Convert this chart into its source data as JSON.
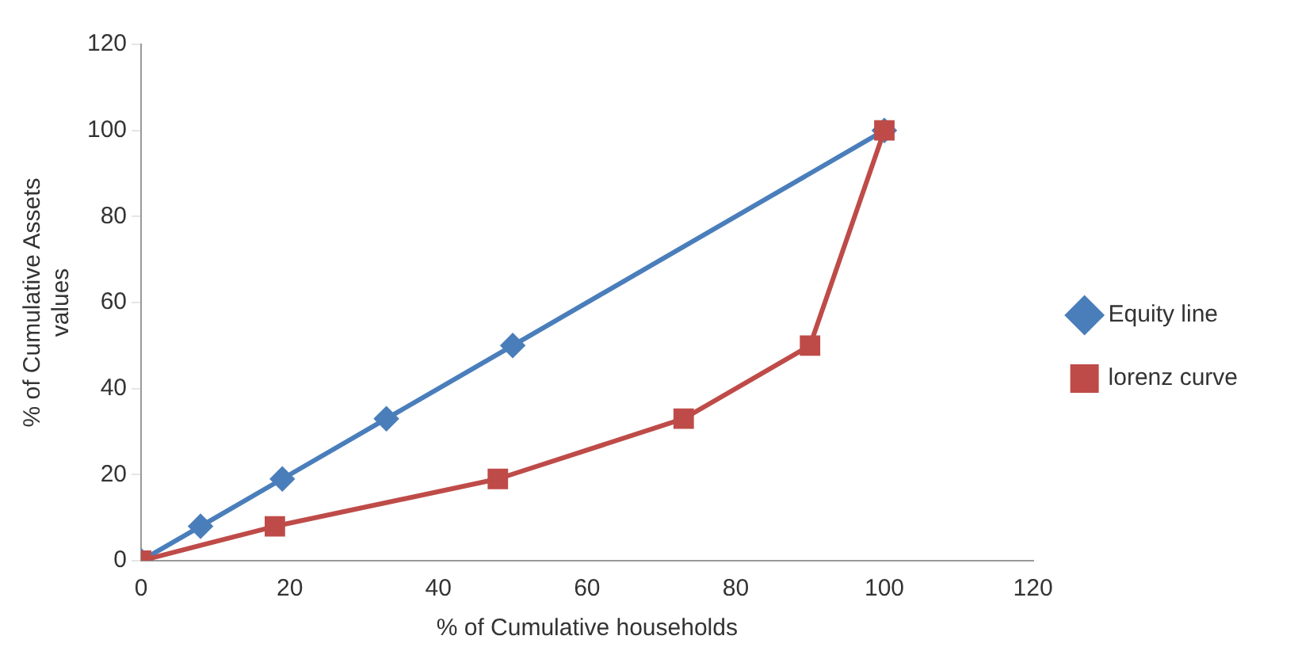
{
  "chart_data": {
    "type": "line",
    "xlabel": "% of Cumulative households",
    "ylabel": "% of Cumulative Assets values",
    "xlim": [
      0,
      120
    ],
    "xticks": [
      0,
      20,
      40,
      60,
      80,
      100,
      120
    ],
    "ylim": [
      0,
      120
    ],
    "yticks": [
      0,
      20,
      40,
      60,
      80,
      100,
      120
    ],
    "grid": false,
    "legend": "right",
    "series": [
      {
        "name": "Equity line",
        "color": "#4a7ebb",
        "marker": "diamond",
        "x": [
          0,
          8,
          19,
          33,
          50,
          100
        ],
        "values": [
          0,
          8,
          19,
          33,
          50,
          100
        ]
      },
      {
        "name": "lorenz curve",
        "color": "#be4b48",
        "marker": "square",
        "x": [
          0,
          18,
          48,
          73,
          90,
          100
        ],
        "values": [
          0,
          8,
          19,
          33,
          50,
          100
        ]
      }
    ]
  }
}
